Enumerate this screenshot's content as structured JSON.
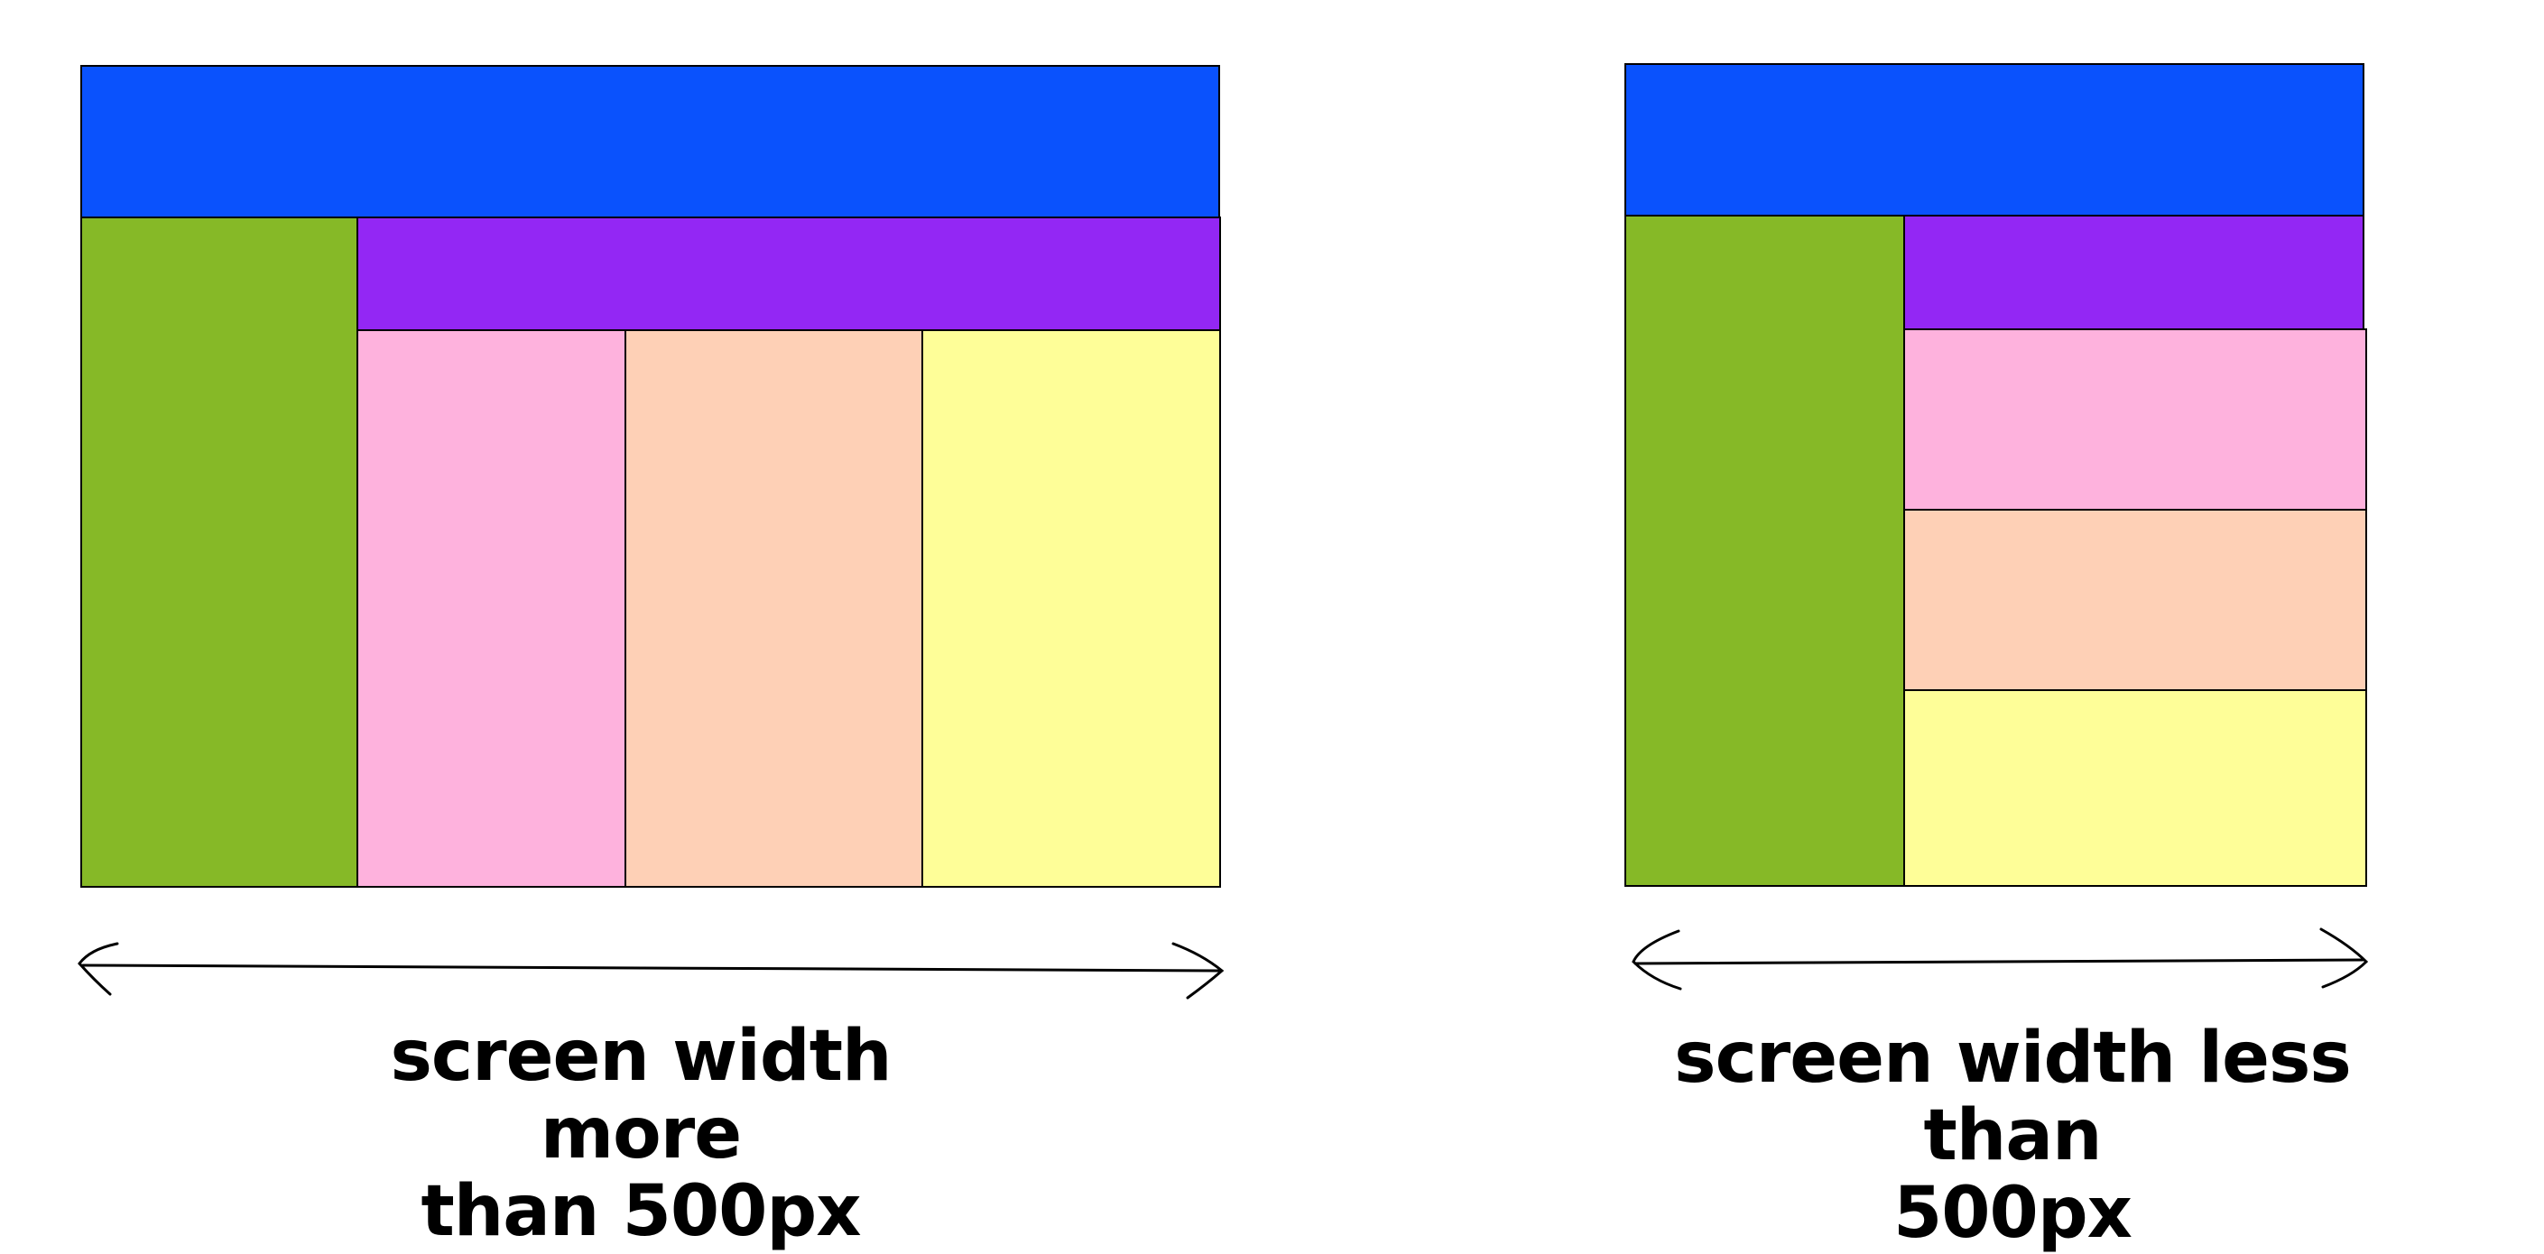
{
  "colors": {
    "header": "#0a52fd",
    "sidebar": "#86b927",
    "nav": "#9327f4",
    "col1": "#feb2dd",
    "col2": "#fed0b6",
    "col3": "#fefe98",
    "outline": "#000000"
  },
  "layouts": {
    "wide": {
      "caption_line1": "screen width more",
      "caption_line2": "than 500px"
    },
    "narrow": {
      "caption_line1": "screen width less than",
      "caption_line2": "500px"
    }
  }
}
